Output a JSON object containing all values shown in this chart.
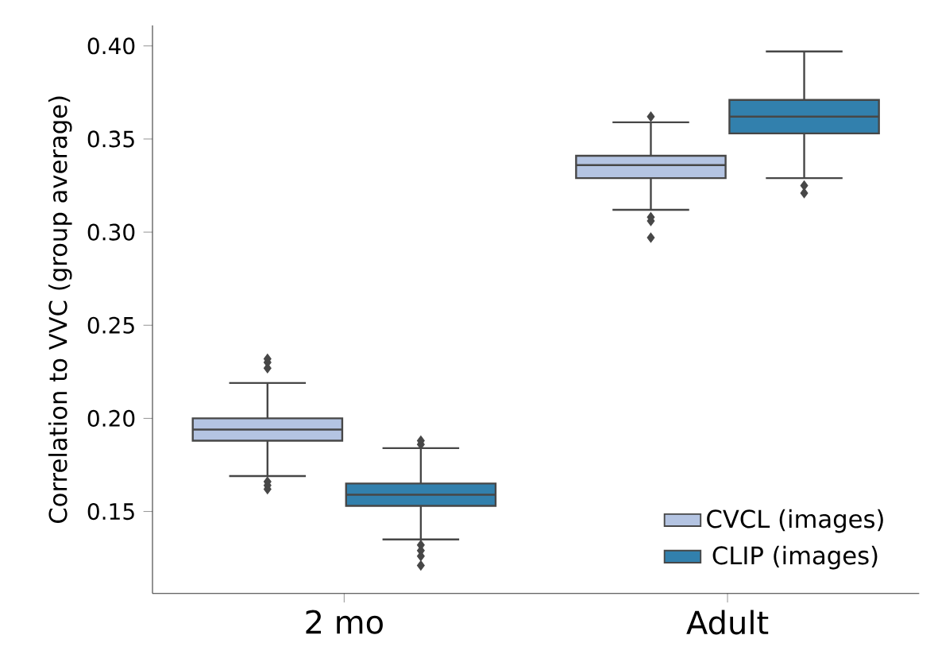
{
  "chart_data": {
    "type": "box",
    "ylabel": "Correlation to VVC (group average)",
    "categories": [
      "2 mo",
      "Adult"
    ],
    "ylim": [
      0.106,
      0.411
    ],
    "yticks": [
      0.15,
      {
        "value": 0.2,
        "label": "0.20"
      },
      0.25,
      {
        "value": 0.3,
        "label": "0.30"
      },
      0.35,
      {
        "value": 0.4,
        "label": "0.40"
      }
    ],
    "legend": "bottom right",
    "marker": "diamond",
    "grid": false,
    "series": [
      {
        "name": "CVCL (images)",
        "color": "#b4c4e2",
        "boxes": [
          {
            "low": 0.169,
            "q1": 0.188,
            "median": 0.194,
            "q3": 0.2,
            "high": 0.219,
            "outliers": [
              0.227,
              0.23,
              0.232,
              0.166,
              0.164,
              0.162
            ]
          },
          {
            "low": 0.312,
            "q1": 0.329,
            "median": 0.336,
            "q3": 0.341,
            "high": 0.359,
            "outliers": [
              0.362,
              0.308,
              0.306,
              0.297
            ]
          }
        ]
      },
      {
        "name": "CLIP (images)",
        "color": "#3280ad",
        "boxes": [
          {
            "low": 0.135,
            "q1": 0.153,
            "median": 0.159,
            "q3": 0.165,
            "high": 0.184,
            "outliers": [
              0.186,
              0.188,
              0.132,
              0.129,
              0.126,
              0.121
            ]
          },
          {
            "low": 0.329,
            "q1": 0.353,
            "median": 0.362,
            "q3": 0.371,
            "high": 0.397,
            "outliers": [
              0.325,
              0.321
            ]
          }
        ]
      }
    ]
  }
}
